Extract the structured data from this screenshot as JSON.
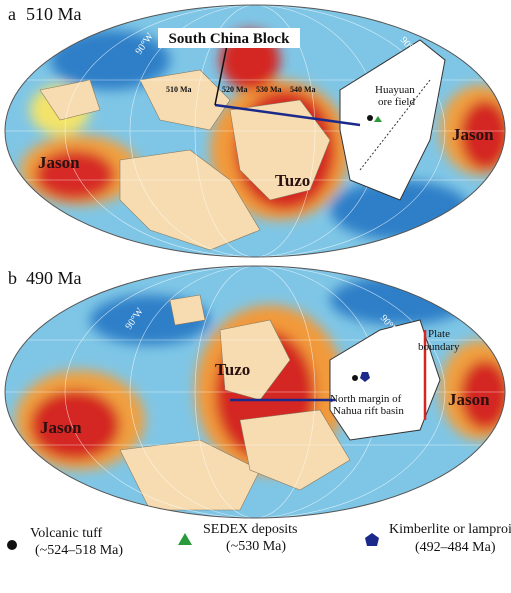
{
  "panels": [
    {
      "label": "a",
      "age": "510 Ma",
      "title": "South China Block",
      "meridians": [
        "90°W",
        "90°E"
      ],
      "ages": [
        "510 Ma",
        "520 Ma",
        "530 Ma",
        "540 Ma"
      ],
      "inset": [
        "Huayuan",
        "ore field"
      ],
      "provinces": [
        "Jason",
        "Tuzo",
        "Jason"
      ]
    },
    {
      "label": "b",
      "age": "490 Ma",
      "meridians": [
        "90°W",
        "90°E"
      ],
      "provinces": [
        "Tuzo",
        "Jason",
        "Jason"
      ],
      "boundary": [
        "Plate",
        "boundary"
      ],
      "inset": [
        "North margin of",
        "Nahua rift basin"
      ]
    }
  ],
  "legend": [
    {
      "label": "Volcanic tuff",
      "range": "(~524–518 Ma)"
    },
    {
      "label": "SEDEX deposits",
      "range": "(~530 Ma)"
    },
    {
      "label": "Kimberlite or lamproite",
      "range": "(492–484 Ma)"
    }
  ]
}
